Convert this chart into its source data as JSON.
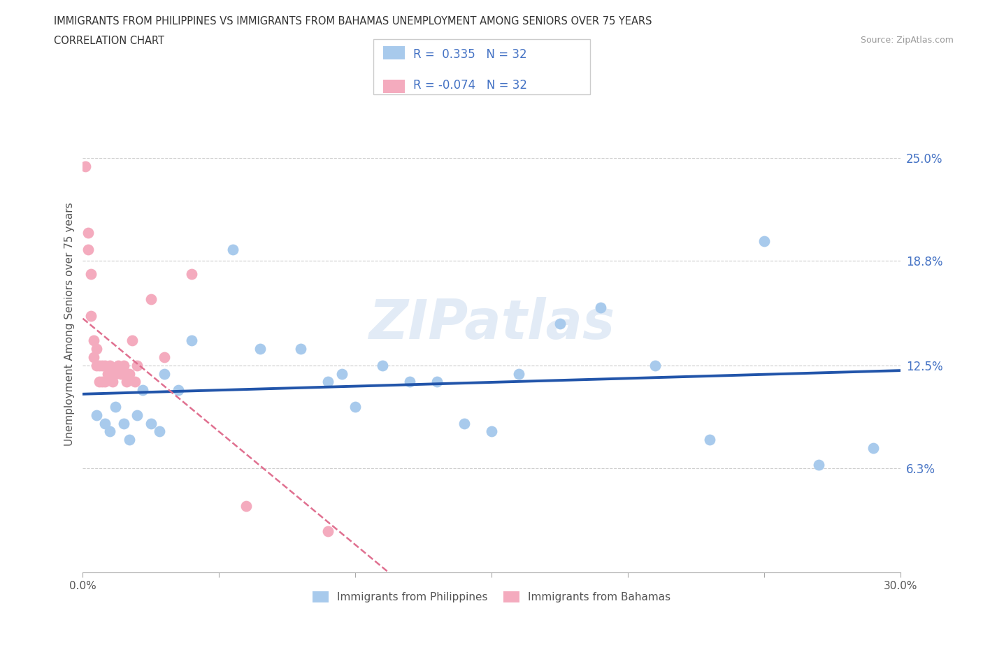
{
  "title_line1": "IMMIGRANTS FROM PHILIPPINES VS IMMIGRANTS FROM BAHAMAS UNEMPLOYMENT AMONG SENIORS OVER 75 YEARS",
  "title_line2": "CORRELATION CHART",
  "source_text": "Source: ZipAtlas.com",
  "ylabel": "Unemployment Among Seniors over 75 years",
  "xlim": [
    0.0,
    0.3
  ],
  "ylim": [
    0.0,
    0.3
  ],
  "ytick_values": [
    0.0,
    0.063,
    0.125,
    0.188,
    0.25
  ],
  "ytick_labels": [
    "",
    "6.3%",
    "12.5%",
    "18.8%",
    "25.0%"
  ],
  "r_philippines": 0.335,
  "r_bahamas": -0.074,
  "n_philippines": 32,
  "n_bahamas": 32,
  "watermark": "ZIPatlas",
  "legend_label_phil": "Immigrants from Philippines",
  "legend_label_bah": "Immigrants from Bahamas",
  "color_philippines": "#A8CAEC",
  "color_bahamas": "#F4ABBE",
  "trendline_phil_color": "#2255AA",
  "trendline_bah_color": "#E07090",
  "philippines_x": [
    0.005,
    0.008,
    0.01,
    0.012,
    0.015,
    0.017,
    0.02,
    0.022,
    0.025,
    0.028,
    0.03,
    0.035,
    0.04,
    0.055,
    0.065,
    0.08,
    0.09,
    0.095,
    0.1,
    0.11,
    0.12,
    0.13,
    0.14,
    0.15,
    0.16,
    0.175,
    0.19,
    0.21,
    0.23,
    0.25,
    0.27,
    0.29
  ],
  "philippines_y": [
    0.095,
    0.09,
    0.085,
    0.1,
    0.09,
    0.08,
    0.095,
    0.11,
    0.09,
    0.085,
    0.12,
    0.11,
    0.14,
    0.195,
    0.135,
    0.135,
    0.115,
    0.12,
    0.1,
    0.125,
    0.115,
    0.115,
    0.09,
    0.085,
    0.12,
    0.15,
    0.16,
    0.125,
    0.08,
    0.2,
    0.065,
    0.075
  ],
  "bahamas_x": [
    0.001,
    0.002,
    0.002,
    0.003,
    0.003,
    0.004,
    0.004,
    0.005,
    0.005,
    0.006,
    0.006,
    0.007,
    0.007,
    0.008,
    0.008,
    0.009,
    0.01,
    0.011,
    0.012,
    0.013,
    0.014,
    0.015,
    0.016,
    0.017,
    0.018,
    0.019,
    0.02,
    0.025,
    0.03,
    0.04,
    0.06,
    0.09
  ],
  "bahamas_y": [
    0.245,
    0.205,
    0.195,
    0.155,
    0.18,
    0.13,
    0.14,
    0.125,
    0.135,
    0.125,
    0.115,
    0.125,
    0.115,
    0.115,
    0.125,
    0.12,
    0.125,
    0.115,
    0.12,
    0.125,
    0.12,
    0.125,
    0.115,
    0.12,
    0.14,
    0.115,
    0.125,
    0.165,
    0.13,
    0.18,
    0.04,
    0.025
  ]
}
